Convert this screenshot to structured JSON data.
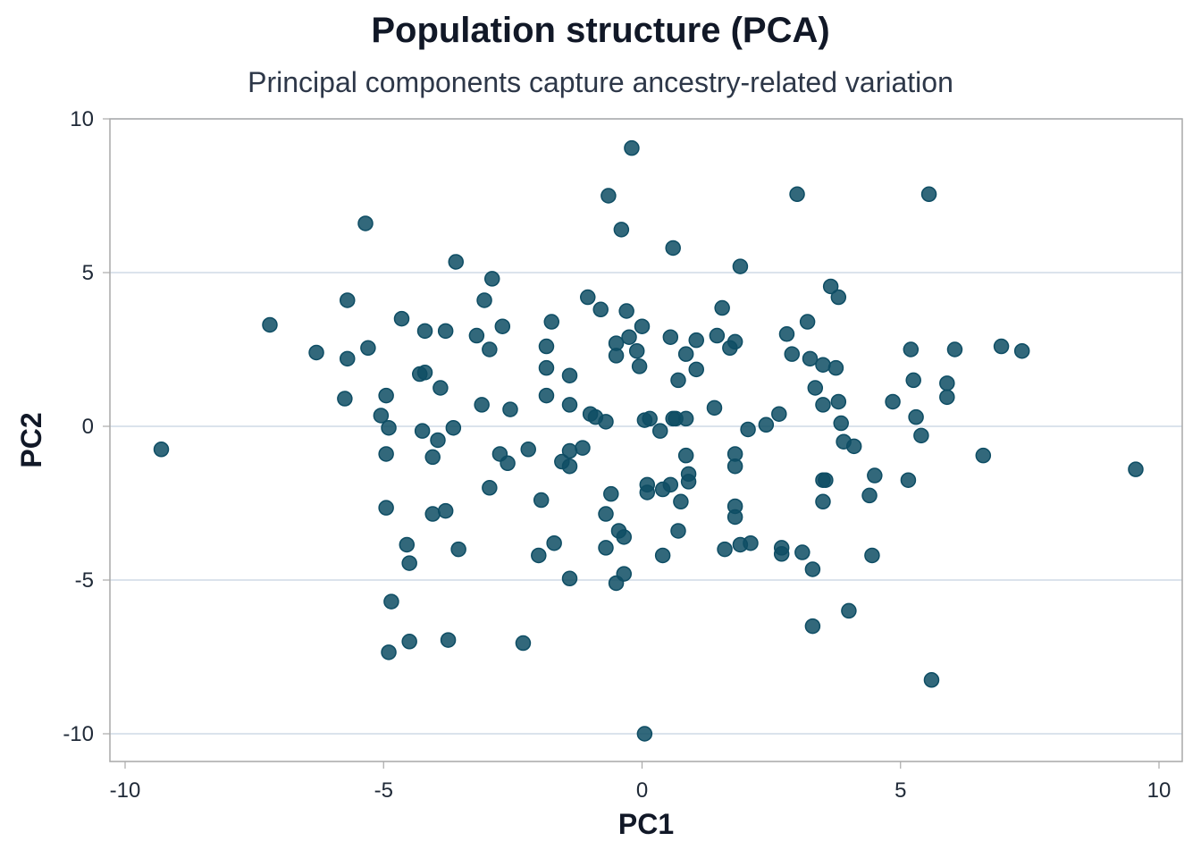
{
  "chart_data": {
    "type": "scatter",
    "title": "Population structure (PCA)",
    "subtitle": "Principal components capture ancestry-related variation",
    "xlabel": "PC1",
    "ylabel": "PC2",
    "xlim": [
      -10.3,
      10.5
    ],
    "ylim": [
      -10.9,
      10
    ],
    "xticks": [
      -10,
      -5,
      0,
      5,
      10
    ],
    "xtick_labels": [
      "-10",
      "-5",
      "0",
      "5",
      "10"
    ],
    "yticks": [
      10,
      5,
      0,
      -5,
      -10
    ],
    "ytick_labels": [
      "10",
      "5",
      "0",
      "-5",
      "-10"
    ],
    "grid": "horizontal",
    "legend": "none",
    "point_color": "#0e4d64",
    "series": [
      {
        "name": "samples",
        "points": [
          [
            -9.3,
            -0.75
          ],
          [
            -7.2,
            3.3
          ],
          [
            -6.3,
            2.4
          ],
          [
            -5.7,
            4.1
          ],
          [
            -5.7,
            2.2
          ],
          [
            -5.75,
            0.9
          ],
          [
            -5.35,
            6.6
          ],
          [
            -5.3,
            2.55
          ],
          [
            -5.05,
            0.35
          ],
          [
            -4.95,
            1.0
          ],
          [
            -4.9,
            -0.05
          ],
          [
            -4.95,
            -0.9
          ],
          [
            -4.95,
            -2.65
          ],
          [
            -4.85,
            -5.7
          ],
          [
            -4.9,
            -7.35
          ],
          [
            -4.65,
            3.5
          ],
          [
            -4.55,
            -3.85
          ],
          [
            -4.5,
            -4.45
          ],
          [
            -4.5,
            -7.0
          ],
          [
            -4.3,
            1.7
          ],
          [
            -4.25,
            -0.15
          ],
          [
            -4.2,
            3.1
          ],
          [
            -4.2,
            1.75
          ],
          [
            -4.05,
            -1.0
          ],
          [
            -4.05,
            -2.85
          ],
          [
            -3.95,
            -0.45
          ],
          [
            -3.9,
            1.25
          ],
          [
            -3.8,
            -2.75
          ],
          [
            -3.8,
            3.1
          ],
          [
            -3.75,
            -6.95
          ],
          [
            -3.6,
            5.35
          ],
          [
            -3.65,
            -0.05
          ],
          [
            -3.55,
            -4.0
          ],
          [
            -3.2,
            2.95
          ],
          [
            -3.1,
            0.7
          ],
          [
            -3.05,
            4.1
          ],
          [
            -2.95,
            2.5
          ],
          [
            -2.9,
            4.8
          ],
          [
            -2.95,
            -2.0
          ],
          [
            -2.75,
            -0.9
          ],
          [
            -2.7,
            3.25
          ],
          [
            -2.6,
            -1.2
          ],
          [
            -2.55,
            0.55
          ],
          [
            -2.3,
            -7.05
          ],
          [
            -2.2,
            -0.75
          ],
          [
            -2.0,
            -4.2
          ],
          [
            -1.95,
            -2.4
          ],
          [
            -1.85,
            2.6
          ],
          [
            -1.85,
            1.9
          ],
          [
            -1.85,
            1.0
          ],
          [
            -1.75,
            3.4
          ],
          [
            -1.7,
            -3.8
          ],
          [
            -1.55,
            -1.15
          ],
          [
            -1.4,
            -1.3
          ],
          [
            -1.4,
            1.65
          ],
          [
            -1.4,
            0.7
          ],
          [
            -1.4,
            -0.8
          ],
          [
            -1.4,
            -4.95
          ],
          [
            -1.15,
            -0.7
          ],
          [
            -1.05,
            4.2
          ],
          [
            -1.0,
            0.4
          ],
          [
            -0.9,
            0.3
          ],
          [
            -0.8,
            3.8
          ],
          [
            -0.7,
            -2.85
          ],
          [
            -0.7,
            0.15
          ],
          [
            -0.7,
            -3.95
          ],
          [
            -0.65,
            7.5
          ],
          [
            -0.6,
            -2.2
          ],
          [
            -0.5,
            2.7
          ],
          [
            -0.5,
            2.3
          ],
          [
            -0.5,
            -5.1
          ],
          [
            -0.45,
            -3.4
          ],
          [
            -0.4,
            6.4
          ],
          [
            -0.35,
            -3.6
          ],
          [
            -0.35,
            -4.8
          ],
          [
            -0.3,
            3.75
          ],
          [
            -0.25,
            2.9
          ],
          [
            -0.2,
            9.05
          ],
          [
            -0.1,
            2.45
          ],
          [
            -0.05,
            1.95
          ],
          [
            0.0,
            3.25
          ],
          [
            0.05,
            0.2
          ],
          [
            0.1,
            -1.9
          ],
          [
            0.1,
            -2.15
          ],
          [
            0.15,
            0.25
          ],
          [
            0.05,
            -10.0
          ],
          [
            0.35,
            -0.15
          ],
          [
            0.4,
            -4.2
          ],
          [
            0.4,
            -2.05
          ],
          [
            0.55,
            -1.9
          ],
          [
            0.55,
            2.9
          ],
          [
            0.6,
            5.8
          ],
          [
            0.6,
            0.25
          ],
          [
            0.65,
            0.25
          ],
          [
            0.7,
            -3.4
          ],
          [
            0.7,
            1.5
          ],
          [
            0.75,
            -2.45
          ],
          [
            0.85,
            -0.95
          ],
          [
            0.85,
            0.25
          ],
          [
            0.85,
            2.35
          ],
          [
            0.9,
            -1.55
          ],
          [
            0.9,
            -1.8
          ],
          [
            1.05,
            2.8
          ],
          [
            1.05,
            1.85
          ],
          [
            1.4,
            0.6
          ],
          [
            1.45,
            2.95
          ],
          [
            1.55,
            3.85
          ],
          [
            1.6,
            -4.0
          ],
          [
            1.7,
            2.55
          ],
          [
            1.8,
            2.75
          ],
          [
            1.8,
            -0.9
          ],
          [
            1.8,
            -1.3
          ],
          [
            1.8,
            -2.6
          ],
          [
            1.8,
            -2.95
          ],
          [
            1.9,
            5.2
          ],
          [
            1.9,
            -3.85
          ],
          [
            2.05,
            -0.1
          ],
          [
            2.1,
            -3.8
          ],
          [
            2.4,
            0.05
          ],
          [
            2.65,
            0.4
          ],
          [
            2.7,
            -3.95
          ],
          [
            2.7,
            -4.15
          ],
          [
            2.8,
            3.0
          ],
          [
            2.9,
            2.35
          ],
          [
            3.0,
            7.55
          ],
          [
            3.1,
            -4.1
          ],
          [
            3.2,
            3.4
          ],
          [
            3.25,
            2.2
          ],
          [
            3.3,
            -4.65
          ],
          [
            3.3,
            -6.5
          ],
          [
            3.35,
            1.25
          ],
          [
            3.5,
            -1.75
          ],
          [
            3.55,
            -1.75
          ],
          [
            3.5,
            -2.45
          ],
          [
            3.5,
            0.7
          ],
          [
            3.5,
            2.0
          ],
          [
            3.65,
            4.55
          ],
          [
            3.75,
            1.9
          ],
          [
            3.8,
            4.2
          ],
          [
            3.8,
            0.8
          ],
          [
            3.85,
            0.1
          ],
          [
            3.9,
            -0.5
          ],
          [
            4.0,
            -6.0
          ],
          [
            4.1,
            -0.65
          ],
          [
            4.4,
            -2.25
          ],
          [
            4.45,
            -4.2
          ],
          [
            4.5,
            -1.6
          ],
          [
            4.85,
            0.8
          ],
          [
            5.15,
            -1.75
          ],
          [
            5.2,
            2.5
          ],
          [
            5.25,
            1.5
          ],
          [
            5.3,
            0.3
          ],
          [
            5.4,
            -0.3
          ],
          [
            5.55,
            7.55
          ],
          [
            5.6,
            -8.25
          ],
          [
            5.9,
            1.4
          ],
          [
            5.9,
            0.95
          ],
          [
            6.05,
            2.5
          ],
          [
            6.6,
            -0.95
          ],
          [
            6.95,
            2.6
          ],
          [
            7.35,
            2.45
          ],
          [
            9.55,
            -1.4
          ]
        ]
      }
    ]
  }
}
